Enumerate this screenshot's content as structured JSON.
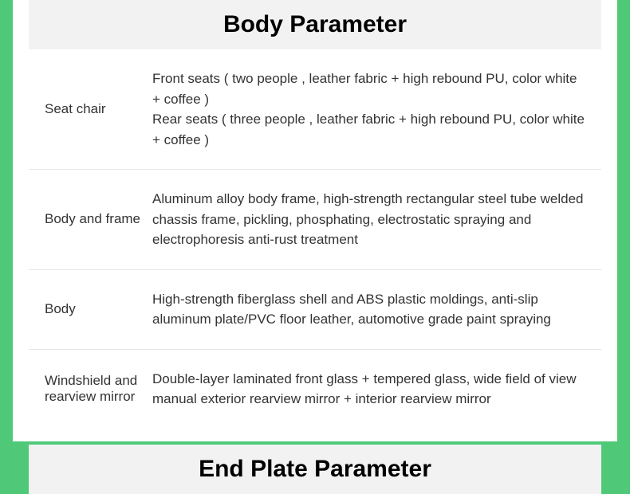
{
  "colors": {
    "page_background": "#4fc978",
    "content_background": "#ffffff",
    "header_background": "#f2f2f2",
    "text_color": "#333333",
    "header_text_color": "#000000",
    "border_color": "#e5e5e5"
  },
  "typography": {
    "header_fontsize": 30,
    "header_fontweight": 900,
    "body_fontsize": 17
  },
  "sections": [
    {
      "title": "Body Parameter",
      "rows": [
        {
          "label": "Seat  chair",
          "value": "Front seats ( two people , leather fabric + high rebound PU, color white + coffee )\nRear seats ( three people , leather fabric + high rebound PU, color white + coffee )"
        },
        {
          "label": "Body and frame",
          "value": "Aluminum alloy body frame, high-strength rectangular steel tube welded chassis frame, pickling, phosphating, electrostatic spraying and electrophoresis anti-rust treatment"
        },
        {
          "label": "Body",
          "value": "High-strength fiberglass shell and ABS plastic moldings, anti-slip aluminum plate/PVC floor leather, automotive grade paint spraying"
        },
        {
          "label": "Windshield and rearview mirror",
          "value": "Double-layer laminated front glass + tempered glass, wide field of view manual exterior rearview mirror + interior rearview mirror"
        }
      ]
    },
    {
      "title": "End Plate Parameter",
      "rows": []
    }
  ]
}
